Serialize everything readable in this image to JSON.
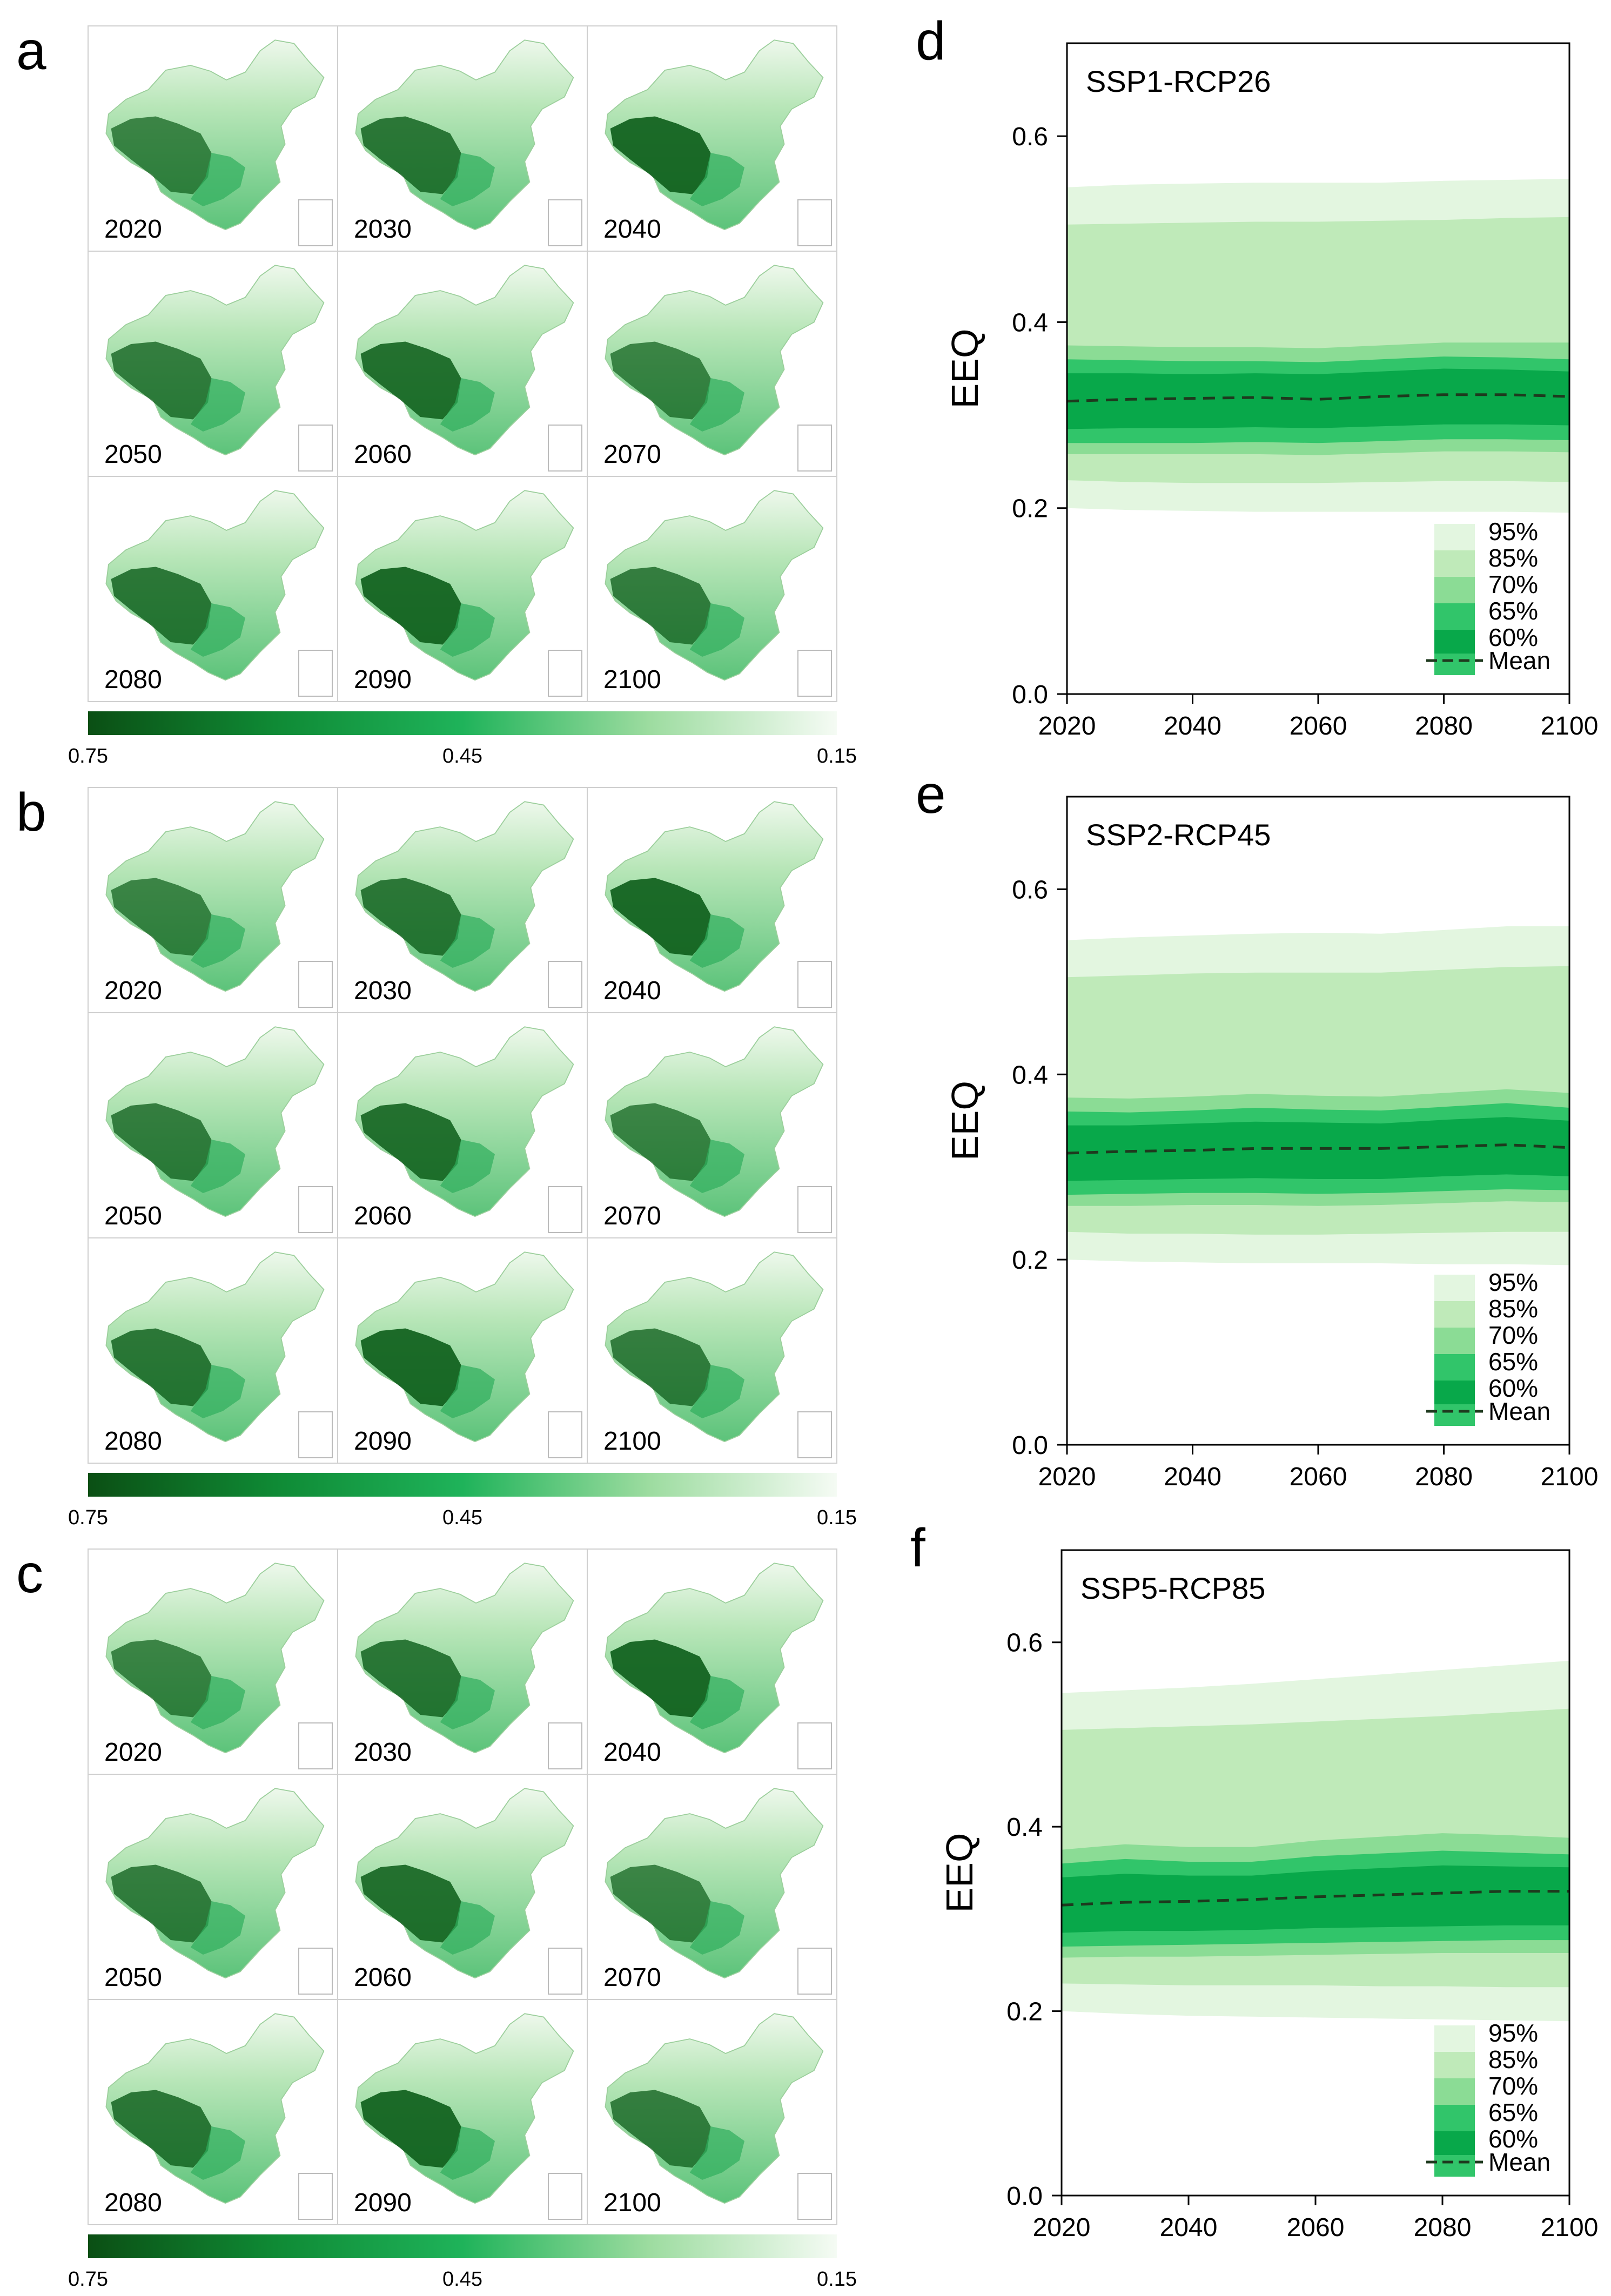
{
  "map_panels": [
    {
      "label": "a",
      "years": [
        "2020",
        "2030",
        "2040",
        "2050",
        "2060",
        "2070",
        "2080",
        "2090",
        "2100"
      ],
      "colorbar": {
        "ticks": [
          "0.75",
          "0.45",
          "0.15"
        ]
      }
    },
    {
      "label": "b",
      "years": [
        "2020",
        "2030",
        "2040",
        "2050",
        "2060",
        "2070",
        "2080",
        "2090",
        "2100"
      ],
      "colorbar": {
        "ticks": [
          "0.75",
          "0.45",
          "0.15"
        ]
      }
    },
    {
      "label": "c",
      "years": [
        "2020",
        "2030",
        "2040",
        "2050",
        "2060",
        "2070",
        "2080",
        "2090",
        "2100"
      ],
      "colorbar": {
        "ticks": [
          "0.75",
          "0.45",
          "0.15"
        ]
      }
    }
  ],
  "colors": {
    "band_95": "#e3f6e0",
    "band_85": "#bfeab9",
    "band_70": "#8bdc95",
    "band_65": "#31c56a",
    "band_60": "#08a84a",
    "mean_line": "#1e3a1e",
    "map_dark": "#0f5f1c",
    "map_mid": "#2fae5c",
    "map_light": "#e9f7e7"
  },
  "chart_data": [
    {
      "panel_label": "d",
      "type": "area",
      "title": "SSP1-RCP26",
      "xlabel": "",
      "ylabel": "EEQ",
      "xlim": [
        2020,
        2100
      ],
      "ylim": [
        0.0,
        0.7
      ],
      "xticks": [
        "2020",
        "2040",
        "2060",
        "2080",
        "2100"
      ],
      "yticks": [
        "0.0",
        "0.2",
        "0.4",
        "0.6"
      ],
      "grid": false,
      "legend_position": "bottom-right",
      "legend": [
        "95%",
        "85%",
        "70%",
        "65%",
        "60%",
        "Mean"
      ],
      "x": [
        2020,
        2030,
        2040,
        2050,
        2060,
        2070,
        2080,
        2090,
        2100
      ],
      "series": [
        {
          "name": "95%",
          "lower": [
            0.2,
            0.198,
            0.197,
            0.196,
            0.196,
            0.196,
            0.196,
            0.196,
            0.195
          ],
          "upper": [
            0.545,
            0.548,
            0.549,
            0.55,
            0.55,
            0.55,
            0.552,
            0.553,
            0.554
          ]
        },
        {
          "name": "85%",
          "lower": [
            0.23,
            0.228,
            0.227,
            0.227,
            0.227,
            0.228,
            0.229,
            0.229,
            0.228
          ],
          "upper": [
            0.505,
            0.506,
            0.507,
            0.508,
            0.508,
            0.509,
            0.51,
            0.512,
            0.513
          ]
        },
        {
          "name": "70%",
          "lower": [
            0.258,
            0.258,
            0.258,
            0.258,
            0.257,
            0.259,
            0.261,
            0.261,
            0.26
          ],
          "upper": [
            0.375,
            0.374,
            0.373,
            0.373,
            0.372,
            0.375,
            0.378,
            0.378,
            0.378
          ]
        },
        {
          "name": "65%",
          "lower": [
            0.27,
            0.27,
            0.27,
            0.271,
            0.27,
            0.272,
            0.274,
            0.274,
            0.273
          ],
          "upper": [
            0.36,
            0.359,
            0.358,
            0.358,
            0.357,
            0.36,
            0.363,
            0.362,
            0.36
          ]
        },
        {
          "name": "60%",
          "lower": [
            0.285,
            0.286,
            0.286,
            0.287,
            0.286,
            0.288,
            0.29,
            0.29,
            0.289
          ],
          "upper": [
            0.345,
            0.345,
            0.344,
            0.345,
            0.344,
            0.347,
            0.35,
            0.349,
            0.347
          ]
        },
        {
          "name": "Mean",
          "values": [
            0.315,
            0.317,
            0.318,
            0.319,
            0.317,
            0.32,
            0.322,
            0.322,
            0.32
          ]
        }
      ]
    },
    {
      "panel_label": "e",
      "type": "area",
      "title": "SSP2-RCP45",
      "xlabel": "",
      "ylabel": "EEQ",
      "xlim": [
        2020,
        2100
      ],
      "ylim": [
        0.0,
        0.7
      ],
      "xticks": [
        "2020",
        "2040",
        "2060",
        "2080",
        "2100"
      ],
      "yticks": [
        "0.0",
        "0.2",
        "0.4",
        "0.6"
      ],
      "grid": false,
      "legend_position": "bottom-right",
      "legend": [
        "95%",
        "85%",
        "70%",
        "65%",
        "60%",
        "Mean"
      ],
      "x": [
        2020,
        2030,
        2040,
        2050,
        2060,
        2070,
        2080,
        2090,
        2100
      ],
      "series": [
        {
          "name": "95%",
          "lower": [
            0.2,
            0.198,
            0.197,
            0.196,
            0.196,
            0.196,
            0.195,
            0.195,
            0.194
          ],
          "upper": [
            0.545,
            0.548,
            0.55,
            0.552,
            0.553,
            0.552,
            0.556,
            0.56,
            0.56
          ]
        },
        {
          "name": "85%",
          "lower": [
            0.23,
            0.228,
            0.228,
            0.227,
            0.227,
            0.228,
            0.229,
            0.23,
            0.23
          ],
          "upper": [
            0.505,
            0.507,
            0.509,
            0.51,
            0.51,
            0.51,
            0.513,
            0.516,
            0.517
          ]
        },
        {
          "name": "70%",
          "lower": [
            0.258,
            0.258,
            0.259,
            0.259,
            0.258,
            0.259,
            0.261,
            0.263,
            0.262
          ],
          "upper": [
            0.375,
            0.374,
            0.376,
            0.379,
            0.377,
            0.376,
            0.38,
            0.384,
            0.38
          ]
        },
        {
          "name": "65%",
          "lower": [
            0.27,
            0.271,
            0.272,
            0.272,
            0.271,
            0.272,
            0.274,
            0.276,
            0.275
          ],
          "upper": [
            0.36,
            0.359,
            0.361,
            0.364,
            0.362,
            0.361,
            0.365,
            0.369,
            0.364
          ]
        },
        {
          "name": "60%",
          "lower": [
            0.285,
            0.286,
            0.287,
            0.288,
            0.287,
            0.287,
            0.29,
            0.292,
            0.29
          ],
          "upper": [
            0.345,
            0.345,
            0.347,
            0.349,
            0.348,
            0.347,
            0.351,
            0.354,
            0.35
          ]
        },
        {
          "name": "Mean",
          "values": [
            0.315,
            0.317,
            0.318,
            0.32,
            0.32,
            0.32,
            0.322,
            0.324,
            0.321
          ]
        }
      ]
    },
    {
      "panel_label": "f",
      "type": "area",
      "title": "SSP5-RCP85",
      "xlabel": "",
      "ylabel": "EEQ",
      "xlim": [
        2020,
        2100
      ],
      "ylim": [
        0.0,
        0.7
      ],
      "xticks": [
        "2020",
        "2040",
        "2060",
        "2080",
        "2100"
      ],
      "yticks": [
        "0.0",
        "0.2",
        "0.4",
        "0.6"
      ],
      "grid": false,
      "legend_position": "bottom-right",
      "legend": [
        "95%",
        "85%",
        "70%",
        "65%",
        "60%",
        "Mean"
      ],
      "x": [
        2020,
        2030,
        2040,
        2050,
        2060,
        2070,
        2080,
        2090,
        2100
      ],
      "series": [
        {
          "name": "95%",
          "lower": [
            0.2,
            0.197,
            0.195,
            0.194,
            0.193,
            0.192,
            0.191,
            0.19,
            0.189
          ],
          "upper": [
            0.545,
            0.548,
            0.551,
            0.555,
            0.56,
            0.565,
            0.57,
            0.575,
            0.58
          ]
        },
        {
          "name": "85%",
          "lower": [
            0.23,
            0.229,
            0.228,
            0.228,
            0.228,
            0.227,
            0.227,
            0.226,
            0.226
          ],
          "upper": [
            0.505,
            0.507,
            0.509,
            0.511,
            0.514,
            0.517,
            0.52,
            0.524,
            0.528
          ]
        },
        {
          "name": "70%",
          "lower": [
            0.258,
            0.259,
            0.259,
            0.26,
            0.261,
            0.262,
            0.263,
            0.263,
            0.263
          ],
          "upper": [
            0.375,
            0.381,
            0.378,
            0.378,
            0.385,
            0.389,
            0.393,
            0.391,
            0.388
          ]
        },
        {
          "name": "65%",
          "lower": [
            0.27,
            0.271,
            0.272,
            0.273,
            0.274,
            0.275,
            0.276,
            0.277,
            0.277
          ],
          "upper": [
            0.36,
            0.365,
            0.362,
            0.362,
            0.368,
            0.371,
            0.374,
            0.372,
            0.37
          ]
        },
        {
          "name": "60%",
          "lower": [
            0.285,
            0.287,
            0.287,
            0.288,
            0.29,
            0.291,
            0.292,
            0.293,
            0.293
          ],
          "upper": [
            0.345,
            0.349,
            0.347,
            0.347,
            0.352,
            0.355,
            0.358,
            0.357,
            0.356
          ]
        },
        {
          "name": "Mean",
          "values": [
            0.315,
            0.318,
            0.319,
            0.321,
            0.324,
            0.326,
            0.328,
            0.33,
            0.33
          ]
        }
      ]
    }
  ]
}
